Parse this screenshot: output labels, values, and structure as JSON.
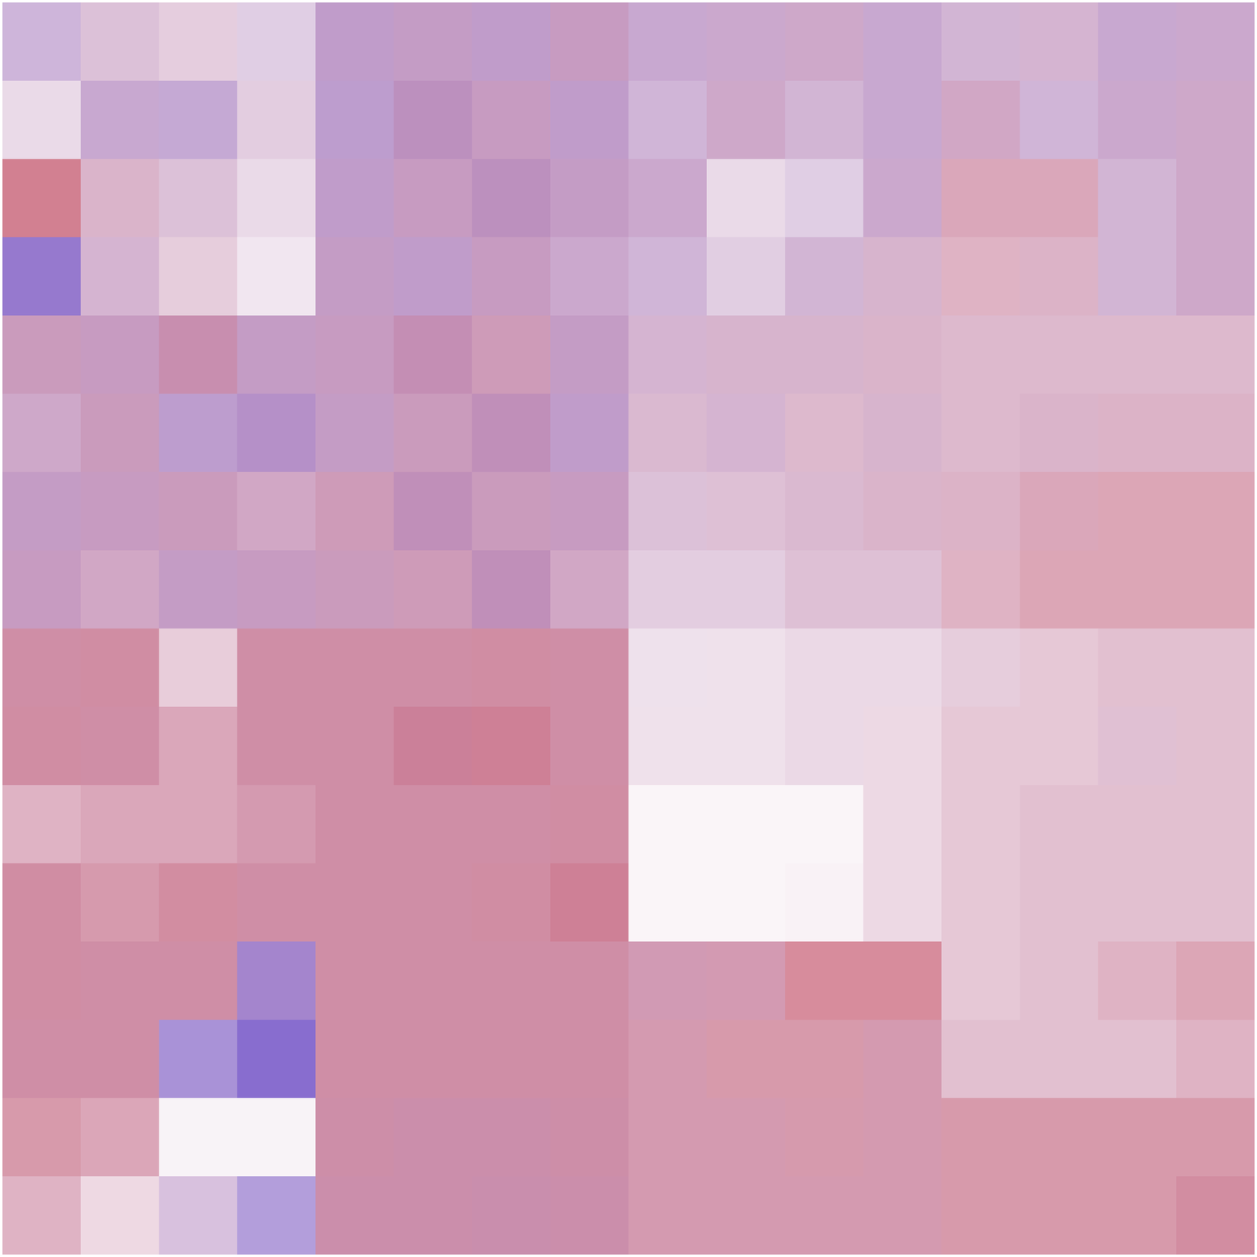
{
  "chart_data": {
    "type": "heatmap",
    "tick_labels": false,
    "density_range": [
      0,
      1
    ],
    "lean_range": [
      -1,
      1
    ],
    "density": [
      [
        0.3,
        0.25,
        0.2,
        0.2,
        0.4,
        0.4,
        0.4,
        0.4,
        0.35,
        0.35,
        0.35,
        0.35,
        0.3,
        0.3,
        0.35,
        0.35
      ],
      [
        0.15,
        0.35,
        0.35,
        0.2,
        0.4,
        0.45,
        0.4,
        0.4,
        0.3,
        0.35,
        0.3,
        0.35,
        0.35,
        0.3,
        0.35,
        0.35
      ],
      [
        0.5,
        0.3,
        0.25,
        0.15,
        0.4,
        0.4,
        0.45,
        0.4,
        0.35,
        0.15,
        0.2,
        0.35,
        0.35,
        0.35,
        0.3,
        0.35
      ],
      [
        0.55,
        0.3,
        0.2,
        0.1,
        0.4,
        0.4,
        0.4,
        0.35,
        0.3,
        0.2,
        0.3,
        0.3,
        0.3,
        0.3,
        0.3,
        0.35
      ],
      [
        0.4,
        0.4,
        0.45,
        0.4,
        0.4,
        0.45,
        0.4,
        0.4,
        0.3,
        0.3,
        0.3,
        0.3,
        0.28,
        0.28,
        0.28,
        0.28
      ],
      [
        0.35,
        0.4,
        0.4,
        0.45,
        0.4,
        0.4,
        0.45,
        0.4,
        0.28,
        0.3,
        0.28,
        0.3,
        0.28,
        0.3,
        0.3,
        0.3
      ],
      [
        0.4,
        0.4,
        0.4,
        0.35,
        0.4,
        0.45,
        0.4,
        0.4,
        0.25,
        0.25,
        0.28,
        0.3,
        0.3,
        0.35,
        0.35,
        0.35
      ],
      [
        0.4,
        0.35,
        0.4,
        0.4,
        0.4,
        0.4,
        0.45,
        0.35,
        0.2,
        0.2,
        0.25,
        0.25,
        0.3,
        0.35,
        0.35,
        0.35
      ],
      [
        0.45,
        0.45,
        0.2,
        0.45,
        0.45,
        0.45,
        0.45,
        0.45,
        0.12,
        0.12,
        0.15,
        0.15,
        0.2,
        0.22,
        0.25,
        0.25
      ],
      [
        0.45,
        0.45,
        0.35,
        0.45,
        0.45,
        0.5,
        0.5,
        0.45,
        0.12,
        0.12,
        0.15,
        0.15,
        0.22,
        0.22,
        0.25,
        0.25
      ],
      [
        0.3,
        0.35,
        0.35,
        0.4,
        0.45,
        0.45,
        0.45,
        0.45,
        0.04,
        0.04,
        0.04,
        0.15,
        0.22,
        0.25,
        0.25,
        0.25
      ],
      [
        0.45,
        0.4,
        0.45,
        0.45,
        0.45,
        0.45,
        0.45,
        0.5,
        0.04,
        0.04,
        0.05,
        0.15,
        0.22,
        0.25,
        0.25,
        0.25
      ],
      [
        0.45,
        0.45,
        0.45,
        0.5,
        0.45,
        0.45,
        0.45,
        0.45,
        0.4,
        0.4,
        0.45,
        0.45,
        0.22,
        0.25,
        0.3,
        0.35
      ],
      [
        0.45,
        0.45,
        0.45,
        0.6,
        0.45,
        0.45,
        0.45,
        0.45,
        0.4,
        0.4,
        0.4,
        0.4,
        0.25,
        0.25,
        0.25,
        0.3
      ],
      [
        0.4,
        0.35,
        0.05,
        0.05,
        0.45,
        0.45,
        0.45,
        0.45,
        0.4,
        0.4,
        0.4,
        0.4,
        0.4,
        0.4,
        0.4,
        0.4
      ],
      [
        0.3,
        0.15,
        0.25,
        0.4,
        0.45,
        0.45,
        0.45,
        0.45,
        0.4,
        0.4,
        0.4,
        0.4,
        0.4,
        0.4,
        0.4,
        0.45
      ]
    ],
    "lean": [
      [
        -0.3,
        0,
        0.1,
        -0.2,
        -0.2,
        -0.1,
        -0.2,
        0,
        -0.2,
        -0.1,
        0,
        -0.2,
        -0.1,
        0,
        -0.2,
        -0.1
      ],
      [
        0,
        -0.2,
        -0.3,
        0,
        -0.3,
        -0.1,
        0,
        -0.2,
        -0.2,
        0,
        -0.1,
        -0.2,
        0.1,
        -0.2,
        -0.1,
        0
      ],
      [
        0.6,
        0.2,
        0,
        0,
        -0.2,
        0,
        -0.1,
        -0.1,
        -0.1,
        0,
        -0.2,
        -0.1,
        0.4,
        0.4,
        -0.1,
        0
      ],
      [
        -0.6,
        0,
        0.2,
        0,
        -0.1,
        -0.2,
        0,
        -0.1,
        -0.2,
        -0.1,
        -0.1,
        0.1,
        0.4,
        0.3,
        -0.1,
        0
      ],
      [
        0.1,
        0,
        0.2,
        -0.1,
        0,
        0.1,
        0.2,
        -0.1,
        0,
        0.1,
        0.1,
        0.2,
        0.2,
        0.2,
        0.2,
        0.2
      ],
      [
        0,
        0.1,
        -0.3,
        -0.3,
        -0.1,
        0.1,
        0,
        -0.2,
        0.1,
        0,
        0.2,
        0.1,
        0.2,
        0.2,
        0.3,
        0.3
      ],
      [
        -0.1,
        0,
        0.1,
        0.1,
        0.2,
        0,
        0.1,
        0,
        0,
        0.1,
        0.1,
        0.2,
        0.3,
        0.4,
        0.5,
        0.5
      ],
      [
        0,
        0.1,
        -0.1,
        0,
        0.1,
        0.2,
        0,
        0.1,
        0,
        0,
        0.1,
        0.1,
        0.4,
        0.5,
        0.5,
        0.5
      ],
      [
        0.4,
        0.45,
        0.3,
        0.4,
        0.4,
        0.4,
        0.45,
        0.4,
        0,
        0.1,
        0.1,
        0.1,
        0.2,
        0.3,
        0.3,
        0.3
      ],
      [
        0.45,
        0.4,
        0.4,
        0.4,
        0.4,
        0.45,
        0.5,
        0.4,
        0.1,
        0.1,
        0.1,
        0.2,
        0.3,
        0.3,
        0.2,
        0.3
      ],
      [
        0.4,
        0.4,
        0.4,
        0.4,
        0.4,
        0.4,
        0.4,
        0.45,
        0.1,
        0.1,
        0.1,
        0.2,
        0.3,
        0.3,
        0.3,
        0.3
      ],
      [
        0.45,
        0.45,
        0.5,
        0.4,
        0.4,
        0.4,
        0.45,
        0.5,
        0.1,
        0.1,
        0.2,
        0.2,
        0.3,
        0.3,
        0.3,
        0.3
      ],
      [
        0.45,
        0.4,
        0.4,
        -0.5,
        0.4,
        0.4,
        0.4,
        0.4,
        0.3,
        0.35,
        0.6,
        0.6,
        0.3,
        0.3,
        0.4,
        0.5
      ],
      [
        0.4,
        0.4,
        -0.6,
        -0.7,
        0.4,
        0.4,
        0.4,
        0.4,
        0.4,
        0.5,
        0.5,
        0.4,
        0.3,
        0.3,
        0.3,
        0.4
      ],
      [
        0.5,
        0.45,
        0,
        0,
        0.35,
        0.3,
        0.3,
        0.35,
        0.4,
        0.4,
        0.45,
        0.4,
        0.5,
        0.5,
        0.5,
        0.5
      ],
      [
        0.4,
        0.3,
        -0.2,
        -0.6,
        0.3,
        0.3,
        0.25,
        0.3,
        0.4,
        0.4,
        0.4,
        0.4,
        0.5,
        0.5,
        0.5,
        0.5
      ]
    ]
  }
}
